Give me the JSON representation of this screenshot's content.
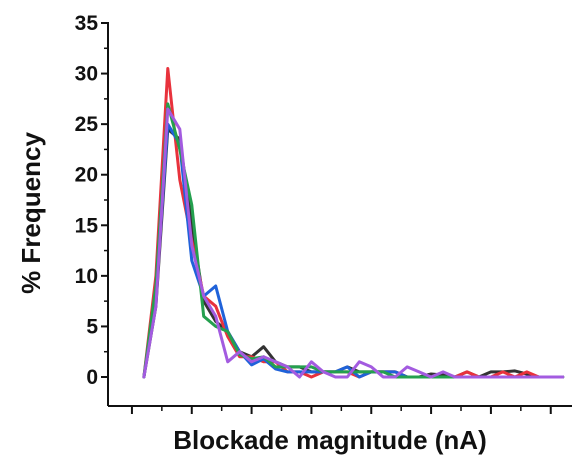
{
  "chart_data": {
    "type": "line",
    "title": "",
    "xlabel": "Blockade magnitude (nA)",
    "ylabel": "% Frequency",
    "ylim": [
      0,
      35
    ],
    "xlim": [
      0,
      38
    ],
    "y_ticks": [
      0,
      5,
      10,
      15,
      20,
      25,
      30,
      35
    ],
    "y_tick_labels": [
      "0",
      "5",
      "10",
      "15",
      "20",
      "25",
      "30",
      "35"
    ],
    "x_major_ticks": [
      2,
      7,
      12,
      17,
      22,
      27,
      32,
      37
    ],
    "x_minor_ticks": [
      4.5,
      9.5,
      14.5,
      19.5,
      24.5,
      29.5,
      34.5
    ],
    "x_tick_labels_shown": false,
    "grid": false,
    "legend": "none",
    "x": [
      3,
      4,
      5,
      6,
      7,
      8,
      9,
      10,
      11,
      12,
      13,
      14,
      15,
      16,
      17,
      18,
      19,
      20,
      21,
      22,
      23,
      24,
      25,
      26,
      27,
      28,
      29,
      30,
      31,
      32,
      33,
      34,
      35,
      36,
      37,
      38
    ],
    "series": [
      {
        "color": "#333333",
        "values": [
          0,
          7,
          24.5,
          23.5,
          15,
          7.5,
          5.5,
          4.5,
          2.5,
          2,
          3,
          1.5,
          1,
          1,
          0.5,
          0.5,
          0.5,
          1,
          0.5,
          0.5,
          0.5,
          0.5,
          0,
          0,
          0.3,
          0.2,
          0,
          0.5,
          0,
          0.5,
          0.5,
          0.6,
          0.3,
          0,
          0,
          0
        ]
      },
      {
        "color": "#e8323c",
        "values": [
          0,
          10,
          30.5,
          19.5,
          13.5,
          8,
          7,
          4,
          2,
          2,
          1.5,
          1.5,
          0.5,
          0.5,
          0,
          0.5,
          0.5,
          0.5,
          0,
          0.5,
          0.5,
          0.5,
          0,
          0,
          0,
          0,
          0,
          0.5,
          0,
          0,
          0.5,
          0,
          0.5,
          0,
          0,
          0
        ]
      },
      {
        "color": "#1f62d9",
        "values": [
          0,
          8,
          25,
          23,
          11.5,
          8,
          9,
          4.5,
          2.5,
          1.2,
          1.8,
          0.8,
          0.5,
          0.5,
          0.5,
          0.5,
          0.5,
          1,
          0,
          0.5,
          0.5,
          0.5,
          0,
          0,
          0,
          0,
          0,
          0,
          0,
          0,
          0,
          0,
          0,
          0,
          0,
          0
        ]
      },
      {
        "color": "#24a04e",
        "values": [
          0,
          9,
          27,
          22.5,
          17,
          6,
          5,
          4.5,
          2.2,
          1.8,
          2,
          1,
          1,
          1,
          1,
          0.5,
          0.5,
          0.5,
          0.5,
          0.5,
          0.5,
          0,
          0,
          0,
          0,
          0,
          0,
          0,
          0,
          0,
          0,
          0,
          0,
          0,
          0,
          0
        ]
      },
      {
        "color": "#a35be0",
        "values": [
          0,
          7,
          26.5,
          24.5,
          13,
          8,
          6,
          1.5,
          2.5,
          1.5,
          2,
          1.5,
          1,
          0,
          1.5,
          0.5,
          0,
          0,
          1.5,
          1,
          0,
          0,
          1,
          0.5,
          0,
          0.5,
          0,
          0,
          0,
          0,
          0,
          0,
          0,
          0,
          0,
          0
        ]
      }
    ]
  }
}
